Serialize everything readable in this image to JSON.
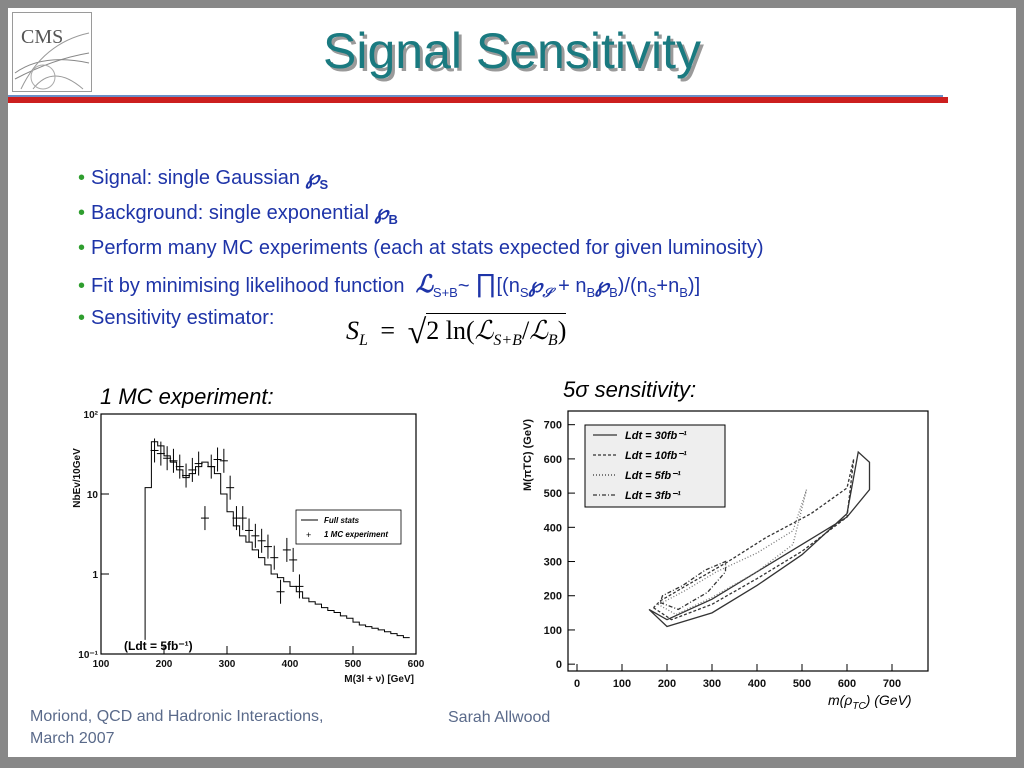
{
  "slide": {
    "title": "Signal Sensitivity",
    "logo_text": "CMS"
  },
  "bullets": {
    "b1": {
      "text": "Signal: single Gaussian",
      "sym": "℘",
      "sub": "S"
    },
    "b2": {
      "text": "Background: single exponential",
      "sym": "℘",
      "sub": "B"
    },
    "b3": {
      "text": "Perform many MC experiments (each at stats expected for given luminosity)"
    },
    "b4": {
      "text": "Fit by minimising likelihood function",
      "L": "ℒ",
      "L_sub": "S+B",
      "tilde": "~",
      "prod": "∏",
      "open": "[(n",
      "ns_sub": "S",
      "p": "℘",
      "ps_sub": "𝒮",
      "plus": " + n",
      "nb_sub": "B",
      "pb_sub": "B",
      "mid": ")/(n",
      "s_sub": "S",
      "plus2": "+n",
      "b_sub": "B",
      "close": ")]"
    },
    "b5": {
      "text": "Sensitivity estimator:"
    }
  },
  "formula": {
    "S": "S",
    "L_sub": "L",
    "eq": "=",
    "two": "2 ln(",
    "calL": "ℒ",
    "sb_sub": "S+B",
    "slash": "/",
    "calL2": "ℒ",
    "b_sub": "B",
    "close": ")"
  },
  "left_caption": "1 MC experiment:",
  "right_caption": "5σ sensitivity:",
  "footer": {
    "left_line1": "Moriond, QCD and Hadronic Interactions,",
    "left_line2": "March 2007",
    "center": "Sarah Allwood"
  },
  "chart_data": [
    {
      "type": "line",
      "xlabel": "M(3l + ν) [GeV]",
      "ylabel": "NbEv/10GeV",
      "xlim": [
        100,
        600
      ],
      "ylim": [
        0.1,
        100
      ],
      "log_y": true,
      "x_ticks": [
        "100",
        "200",
        "300",
        "400",
        "500",
        "600"
      ],
      "y_ticks": [
        "10⁻¹",
        "1",
        "10",
        "10²"
      ],
      "annotation": "(Ldt = 5fb⁻¹)",
      "legend": [
        "Full stats",
        "1 MC experiment"
      ],
      "series": [
        {
          "name": "Full stats",
          "x": [
            175,
            185,
            195,
            205,
            215,
            225,
            235,
            245,
            255,
            265,
            275,
            285,
            295,
            305,
            315,
            325,
            335,
            345,
            355,
            365,
            375,
            385,
            395,
            405,
            415,
            425,
            435,
            445,
            455,
            465,
            475,
            485,
            495,
            505,
            515,
            525,
            535,
            545,
            555,
            565,
            575,
            585
          ],
          "values": [
            12,
            45,
            40,
            30,
            25,
            20,
            16,
            18,
            22,
            25,
            22,
            18,
            10,
            6,
            4,
            3,
            2.5,
            2,
            1.6,
            1.3,
            1,
            0.9,
            0.8,
            0.7,
            0.6,
            0.5,
            0.45,
            0.42,
            0.38,
            0.35,
            0.33,
            0.3,
            0.28,
            0.25,
            0.23,
            0.22,
            0.21,
            0.2,
            0.19,
            0.18,
            0.17,
            0.16
          ]
        },
        {
          "name": "1 MC experiment",
          "x": [
            185,
            195,
            205,
            215,
            225,
            235,
            245,
            255,
            265,
            275,
            285,
            295,
            305,
            315,
            325,
            335,
            345,
            355,
            365,
            375,
            385,
            395,
            405,
            415
          ],
          "values": [
            35,
            32,
            28,
            26,
            22,
            17,
            20,
            24,
            5,
            22,
            27,
            26,
            12,
            5,
            5,
            3.5,
            3,
            2.6,
            2.2,
            1.6,
            0.6,
            2,
            1.5,
            0.7
          ]
        }
      ]
    },
    {
      "type": "line",
      "xlabel": "m(ρTC) (GeV)",
      "ylabel": "M(πTC) (GeV)",
      "xlim": [
        -20,
        780
      ],
      "ylim": [
        -20,
        740
      ],
      "x_ticks": [
        "0",
        "100",
        "200",
        "300",
        "400",
        "500",
        "600",
        "700"
      ],
      "y_ticks": [
        "0",
        "100",
        "200",
        "300",
        "400",
        "500",
        "600",
        "700"
      ],
      "legend": [
        "Ldt = 30fb⁻¹",
        "Ldt = 10fb⁻¹",
        "Ldt = 5fb⁻¹",
        "Ldt = 3fb⁻¹"
      ],
      "series": [
        {
          "name": "Ldt = 30fb⁻¹",
          "x": [
            160,
            200,
            300,
            400,
            500,
            600,
            625,
            650,
            650,
            600,
            500,
            400,
            300,
            200,
            160
          ],
          "y": [
            160,
            110,
            150,
            230,
            320,
            440,
            620,
            590,
            510,
            430,
            350,
            270,
            190,
            130,
            160
          ],
          "dash": "solid"
        },
        {
          "name": "Ldt = 10fb⁻¹",
          "x": [
            170,
            210,
            300,
            400,
            500,
            600,
            615,
            600,
            520,
            420,
            330,
            250,
            185,
            170
          ],
          "y": [
            165,
            130,
            175,
            250,
            330,
            430,
            600,
            515,
            440,
            370,
            295,
            235,
            185,
            165
          ],
          "dash": "dashed"
        },
        {
          "name": "Ldt = 5fb⁻¹",
          "x": [
            180,
            220,
            300,
            400,
            480,
            510,
            480,
            400,
            310,
            240,
            190,
            180
          ],
          "y": [
            175,
            145,
            195,
            270,
            350,
            510,
            390,
            325,
            270,
            215,
            180,
            175
          ],
          "dash": "dotted"
        },
        {
          "name": "Ldt = 3fb⁻¹",
          "x": [
            185,
            225,
            290,
            330,
            330,
            285,
            235,
            190,
            185
          ],
          "y": [
            180,
            160,
            210,
            270,
            300,
            275,
            230,
            200,
            180
          ],
          "dash": "dashdot"
        }
      ]
    }
  ]
}
